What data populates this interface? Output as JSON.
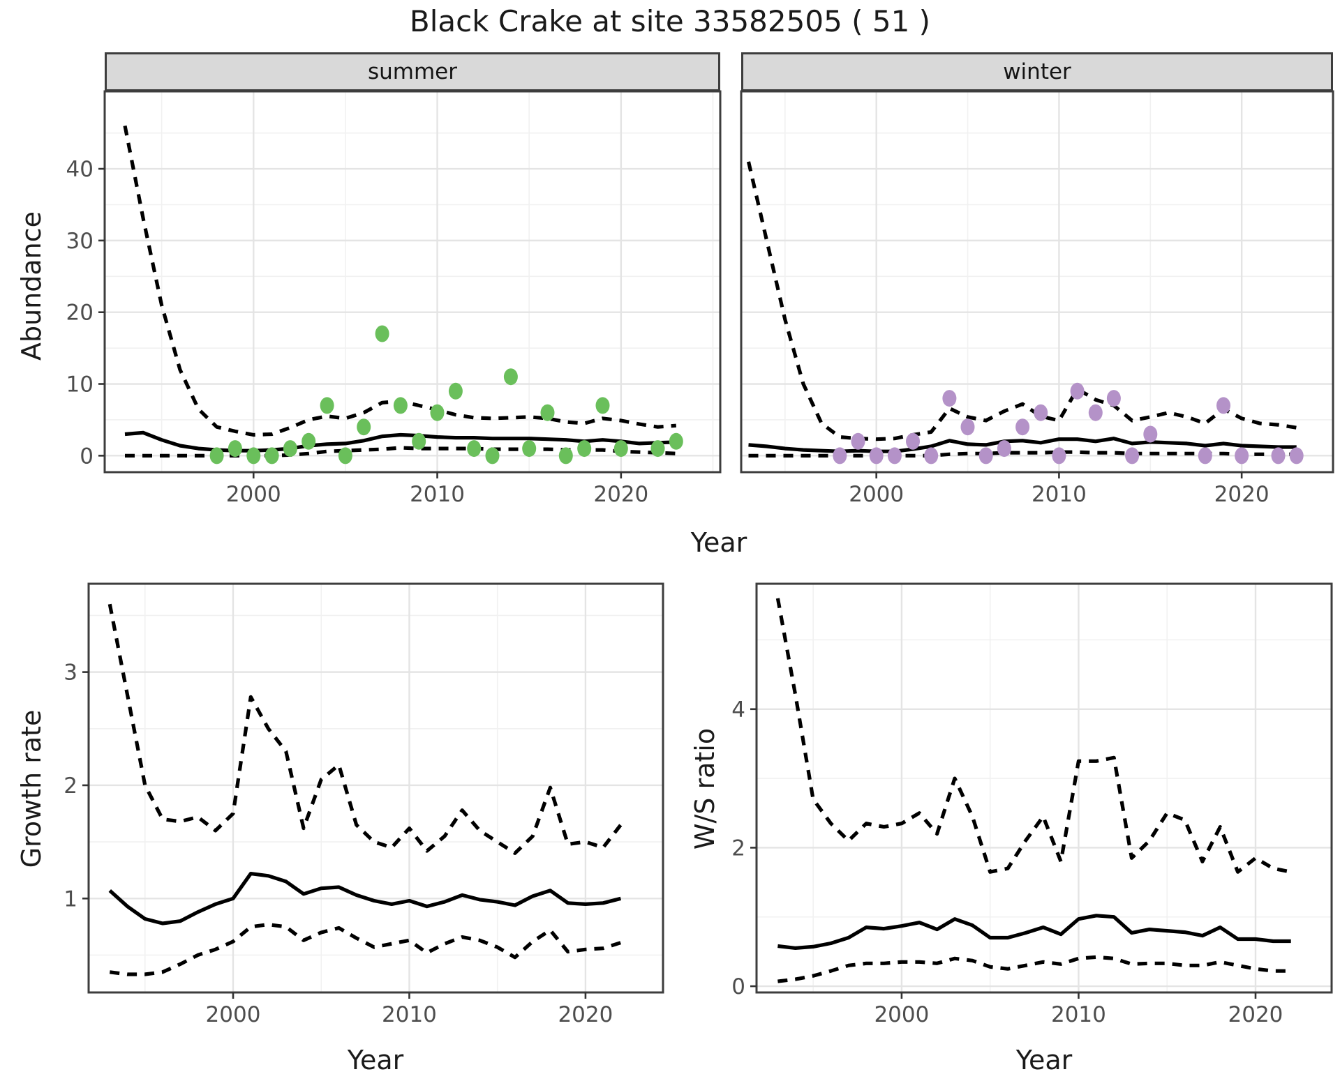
{
  "title": "Black Crake at site 33582505 ( 51 )",
  "axes": {
    "x_label_top": "Year",
    "x_label_bottom_left": "Year",
    "x_label_bottom_right": "Year",
    "y_label_top": "Abundance",
    "y_label_bottom_left": "Growth rate",
    "y_label_bottom_right": "W/S ratio"
  },
  "colors": {
    "summer_points": "#6abf5b",
    "winter_points": "#b492c8",
    "line": "#000000",
    "grid_major": "#e4e4e4",
    "grid_minor": "#f1f1f1",
    "panel_border": "#3d3d3d",
    "tick_label": "#4d4d4d",
    "strip_bg": "#d9d9d9"
  },
  "chart_data": [
    {
      "id": "abundance-summer",
      "type": "scatter",
      "facet_label": "summer",
      "xlabel": "Year",
      "ylabel": "Abundance",
      "xlim": [
        1991.9,
        2025.4
      ],
      "ylim": [
        -2.3,
        50.8
      ],
      "xticks": {
        "major": [
          2000,
          2010,
          2020
        ],
        "minor": [
          1995,
          2005,
          2015,
          2025
        ],
        "labels": [
          "2000",
          "2010",
          "2020"
        ]
      },
      "yticks": {
        "major": [
          0,
          10,
          20,
          30,
          40
        ],
        "minor": [
          5,
          15,
          25,
          35,
          45
        ],
        "labels": [
          "0",
          "10",
          "20",
          "30",
          "40"
        ]
      },
      "grid": true,
      "years": [
        1993,
        1994,
        1995,
        1996,
        1997,
        1998,
        1999,
        2000,
        2001,
        2002,
        2003,
        2004,
        2005,
        2006,
        2007,
        2008,
        2009,
        2010,
        2011,
        2012,
        2013,
        2014,
        2015,
        2016,
        2017,
        2018,
        2019,
        2020,
        2021,
        2022,
        2023
      ],
      "lines": [
        {
          "name": "upper-ci",
          "style": "dashed",
          "values": [
            46,
            33,
            21,
            12,
            6.5,
            4,
            3.4,
            2.9,
            3,
            3.9,
            5,
            5.5,
            5.2,
            6,
            7.4,
            7.6,
            7,
            6.4,
            5.7,
            5.3,
            5.2,
            5.3,
            5.4,
            5.2,
            4.7,
            4.5,
            5.2,
            4.9,
            4.4,
            4,
            4.2
          ]
        },
        {
          "name": "median",
          "style": "solid",
          "values": [
            3,
            3.2,
            2.2,
            1.4,
            1,
            0.8,
            0.7,
            0.7,
            0.8,
            1,
            1.4,
            1.6,
            1.7,
            2.1,
            2.7,
            2.9,
            2.8,
            2.6,
            2.5,
            2.5,
            2.4,
            2.4,
            2.4,
            2.3,
            2.2,
            2,
            2.2,
            2,
            1.7,
            1.8,
            1.9
          ]
        },
        {
          "name": "lower-ci",
          "style": "dashed",
          "values": [
            0,
            0,
            0,
            0,
            0,
            0,
            0,
            0,
            0,
            0.1,
            0.3,
            0.6,
            0.7,
            0.8,
            0.9,
            1.1,
            1,
            1,
            1,
            1,
            0.9,
            0.9,
            0.9,
            0.9,
            0.8,
            0.8,
            0.8,
            0.6,
            0.5,
            0.4,
            0.3
          ]
        }
      ],
      "points": {
        "color": "#6abf5b",
        "x": [
          1998,
          1999,
          2000,
          2001,
          2002,
          2003,
          2004,
          2005,
          2006,
          2007,
          2008,
          2009,
          2010,
          2011,
          2012,
          2013,
          2014,
          2015,
          2016,
          2017,
          2018,
          2019,
          2020,
          2022,
          2023
        ],
        "y": [
          0,
          1,
          0,
          0,
          1,
          2,
          7,
          0,
          4,
          17,
          7,
          2,
          6,
          9,
          1,
          0,
          11,
          1,
          6,
          0,
          1,
          7,
          1,
          1,
          2
        ]
      }
    },
    {
      "id": "abundance-winter",
      "type": "scatter",
      "facet_label": "winter",
      "xlabel": "Year",
      "ylabel": "Abundance",
      "xlim": [
        1992.6,
        2025.0
      ],
      "ylim": [
        -2.3,
        50.8
      ],
      "xticks": {
        "major": [
          2000,
          2010,
          2020
        ],
        "minor": [
          1995,
          2005,
          2015
        ],
        "labels": [
          "2000",
          "2010",
          "2020"
        ]
      },
      "yticks": {
        "major": [
          0,
          10,
          20,
          30,
          40
        ],
        "minor": [
          5,
          15,
          25,
          35,
          45
        ],
        "labels": []
      },
      "grid": true,
      "years": [
        1993,
        1994,
        1995,
        1996,
        1997,
        1998,
        1999,
        2000,
        2001,
        2002,
        2003,
        2004,
        2005,
        2006,
        2007,
        2008,
        2009,
        2010,
        2011,
        2012,
        2013,
        2014,
        2015,
        2016,
        2017,
        2018,
        2019,
        2020,
        2021,
        2022,
        2023
      ],
      "lines": [
        {
          "name": "upper-ci",
          "style": "dashed",
          "values": [
            41,
            30,
            19,
            10,
            4.5,
            2.6,
            2.4,
            2.3,
            2.4,
            2.9,
            3.3,
            6.6,
            5.4,
            4.9,
            6.2,
            7.2,
            5.5,
            4.9,
            9.3,
            7.8,
            7,
            4.9,
            5.4,
            6,
            5.4,
            4.5,
            6.5,
            5.2,
            4.5,
            4.3,
            3.9
          ]
        },
        {
          "name": "median",
          "style": "solid",
          "values": [
            1.5,
            1.3,
            1,
            0.8,
            0.7,
            0.6,
            0.7,
            0.6,
            0.6,
            0.9,
            1.3,
            2.1,
            1.6,
            1.5,
            2,
            2.1,
            1.8,
            2.3,
            2.3,
            2,
            2.4,
            1.7,
            1.9,
            1.8,
            1.7,
            1.4,
            1.7,
            1.4,
            1.3,
            1.2,
            1.2
          ]
        },
        {
          "name": "lower-ci",
          "style": "dashed",
          "values": [
            0,
            0,
            0,
            0,
            0,
            0,
            0,
            0,
            0,
            0,
            0,
            0.2,
            0.3,
            0.3,
            0.4,
            0.4,
            0.4,
            0.5,
            0.5,
            0.4,
            0.4,
            0.3,
            0.3,
            0.3,
            0.3,
            0.3,
            0.3,
            0.2,
            0.2,
            0.2,
            0.2
          ]
        }
      ],
      "points": {
        "color": "#b492c8",
        "x": [
          1998,
          1999,
          2000,
          2001,
          2002,
          2003,
          2004,
          2005,
          2006,
          2007,
          2008,
          2009,
          2010,
          2011,
          2012,
          2013,
          2014,
          2015,
          2018,
          2019,
          2020,
          2022,
          2023
        ],
        "y": [
          0,
          2,
          0,
          0,
          2,
          0,
          8,
          4,
          0,
          1,
          4,
          6,
          0,
          9,
          6,
          8,
          0,
          3,
          0,
          7,
          0,
          0,
          0
        ]
      }
    },
    {
      "id": "growth-rate",
      "type": "line",
      "facet_label": null,
      "xlabel": "Year",
      "ylabel": "Growth rate",
      "xlim": [
        1991.8,
        2024.4
      ],
      "ylim": [
        0.17,
        3.78
      ],
      "xticks": {
        "major": [
          2000,
          2010,
          2020
        ],
        "minor": [
          1995,
          2005,
          2015
        ],
        "labels": [
          "2000",
          "2010",
          "2020"
        ]
      },
      "yticks": {
        "major": [
          1,
          2,
          3
        ],
        "minor": [
          0.5,
          1.5,
          2.5,
          3.5
        ],
        "labels": [
          "1",
          "2",
          "3"
        ]
      },
      "grid": true,
      "years": [
        1993,
        1994,
        1995,
        1996,
        1997,
        1998,
        1999,
        2000,
        2001,
        2002,
        2003,
        2004,
        2005,
        2006,
        2007,
        2008,
        2009,
        2010,
        2011,
        2012,
        2013,
        2014,
        2015,
        2016,
        2017,
        2018,
        2019,
        2020,
        2021,
        2022
      ],
      "lines": [
        {
          "name": "upper-ci",
          "style": "dashed",
          "values": [
            3.6,
            2.8,
            2,
            1.7,
            1.68,
            1.72,
            1.6,
            1.75,
            2.78,
            2.5,
            2.3,
            1.62,
            2.05,
            2.18,
            1.65,
            1.5,
            1.45,
            1.62,
            1.42,
            1.55,
            1.78,
            1.6,
            1.5,
            1.4,
            1.55,
            1.98,
            1.48,
            1.5,
            1.45,
            1.65
          ]
        },
        {
          "name": "median",
          "style": "solid",
          "values": [
            1.07,
            0.93,
            0.82,
            0.78,
            0.8,
            0.88,
            0.95,
            1,
            1.22,
            1.2,
            1.15,
            1.04,
            1.09,
            1.1,
            1.03,
            0.98,
            0.95,
            0.98,
            0.93,
            0.97,
            1.03,
            0.99,
            0.97,
            0.94,
            1.02,
            1.07,
            0.96,
            0.95,
            0.96,
            1
          ]
        },
        {
          "name": "lower-ci",
          "style": "dashed",
          "values": [
            0.35,
            0.33,
            0.33,
            0.35,
            0.42,
            0.5,
            0.55,
            0.62,
            0.75,
            0.77,
            0.75,
            0.63,
            0.7,
            0.74,
            0.65,
            0.57,
            0.6,
            0.63,
            0.52,
            0.6,
            0.66,
            0.63,
            0.57,
            0.48,
            0.62,
            0.72,
            0.53,
            0.55,
            0.56,
            0.61
          ]
        }
      ]
    },
    {
      "id": "ws-ratio",
      "type": "line",
      "facet_label": null,
      "xlabel": "Year",
      "ylabel": "W/S ratio",
      "xlim": [
        1991.8,
        2024.3
      ],
      "ylim": [
        -0.09,
        5.81
      ],
      "xticks": {
        "major": [
          2000,
          2010,
          2020
        ],
        "minor": [
          1995,
          2005,
          2015
        ],
        "labels": [
          "2000",
          "2010",
          "2020"
        ]
      },
      "yticks": {
        "major": [
          0,
          2,
          4
        ],
        "minor": [
          1,
          3,
          5
        ],
        "labels": [
          "0",
          "2",
          "4"
        ]
      },
      "grid": true,
      "years": [
        1993,
        1994,
        1995,
        1996,
        1997,
        1998,
        1999,
        2000,
        2001,
        2002,
        2003,
        2004,
        2005,
        2006,
        2007,
        2008,
        2009,
        2010,
        2011,
        2012,
        2013,
        2014,
        2015,
        2016,
        2017,
        2018,
        2019,
        2020,
        2021,
        2022
      ],
      "lines": [
        {
          "name": "upper-ci",
          "style": "dashed",
          "values": [
            5.6,
            4.2,
            2.7,
            2.35,
            2.1,
            2.35,
            2.3,
            2.35,
            2.5,
            2.2,
            3,
            2.45,
            1.65,
            1.7,
            2.1,
            2.45,
            1.8,
            3.25,
            3.25,
            3.3,
            1.85,
            2.1,
            2.5,
            2.4,
            1.8,
            2.3,
            1.65,
            1.85,
            1.7,
            1.65
          ]
        },
        {
          "name": "median",
          "style": "solid",
          "values": [
            0.58,
            0.55,
            0.57,
            0.62,
            0.7,
            0.85,
            0.83,
            0.87,
            0.92,
            0.82,
            0.97,
            0.88,
            0.7,
            0.7,
            0.77,
            0.85,
            0.75,
            0.97,
            1.02,
            1,
            0.77,
            0.82,
            0.8,
            0.78,
            0.73,
            0.85,
            0.68,
            0.68,
            0.65,
            0.65
          ]
        },
        {
          "name": "lower-ci",
          "style": "dashed",
          "values": [
            0.07,
            0.1,
            0.15,
            0.22,
            0.3,
            0.33,
            0.33,
            0.35,
            0.35,
            0.33,
            0.4,
            0.37,
            0.28,
            0.25,
            0.3,
            0.35,
            0.32,
            0.4,
            0.42,
            0.4,
            0.32,
            0.33,
            0.33,
            0.3,
            0.3,
            0.35,
            0.3,
            0.25,
            0.22,
            0.22
          ]
        }
      ]
    }
  ]
}
